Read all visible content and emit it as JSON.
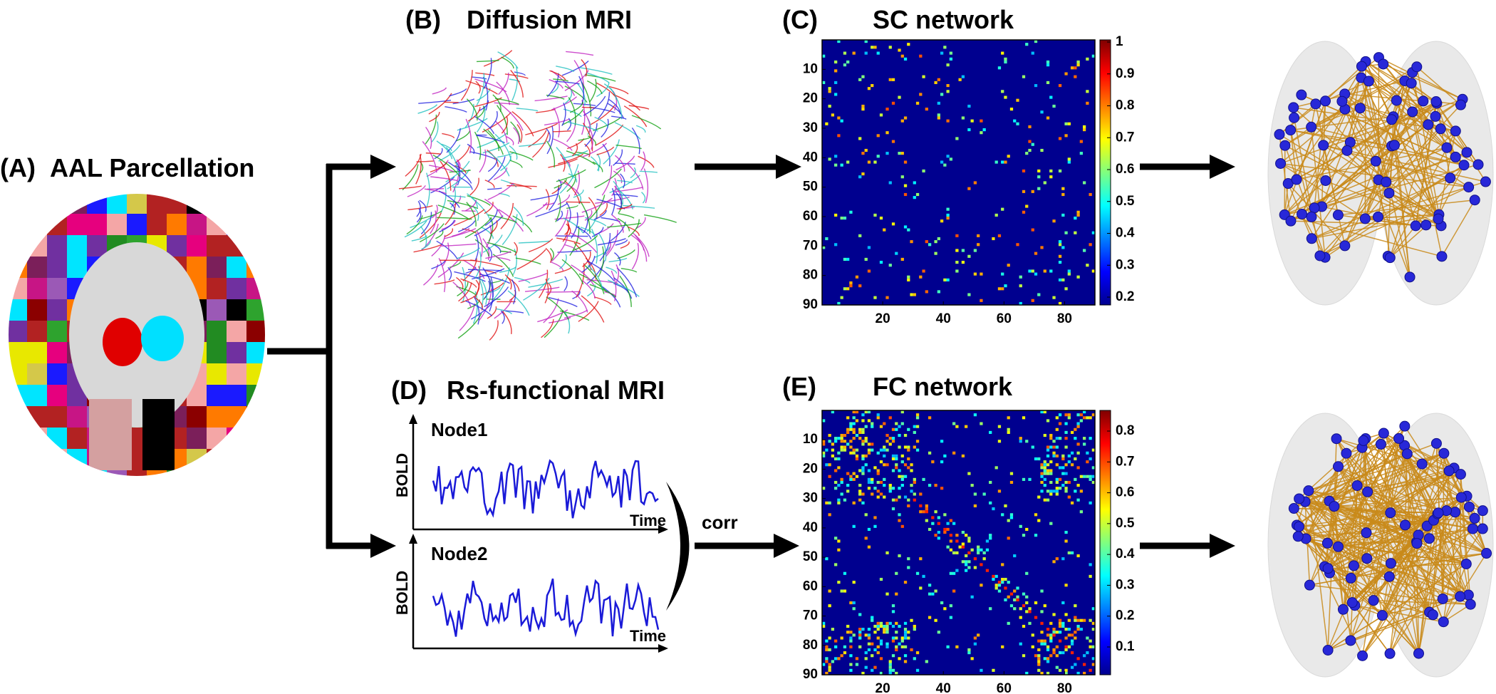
{
  "panels": [
    {
      "label": "(A)",
      "title": "AAL Parcellation"
    },
    {
      "label": "(B)",
      "title": "Diffusion MRI"
    },
    {
      "label": "(C)",
      "title": "SC network",
      "yticks": [
        10,
        20,
        30,
        40,
        50,
        60,
        70,
        80,
        90
      ],
      "xticks": [
        20,
        40,
        60,
        80
      ],
      "colorbar_ticks": [
        1,
        0.9,
        0.8,
        0.7,
        0.6,
        0.5,
        0.4,
        0.3,
        0.2
      ]
    },
    {
      "label": "(D)",
      "title": "Rs-functional MRI",
      "signals": [
        {
          "name": "Node1",
          "ylabel": "BOLD",
          "xlabel": "Time"
        },
        {
          "name": "Node2",
          "ylabel": "BOLD",
          "xlabel": "Time"
        }
      ],
      "operation": "corr"
    },
    {
      "label": "(E)",
      "title": "FC network",
      "yticks": [
        10,
        20,
        30,
        40,
        50,
        60,
        70,
        80,
        90
      ],
      "xticks": [
        20,
        40,
        60,
        80
      ],
      "colorbar_ticks": [
        0.8,
        0.7,
        0.6,
        0.5,
        0.4,
        0.3,
        0.2,
        0.1
      ]
    }
  ]
}
